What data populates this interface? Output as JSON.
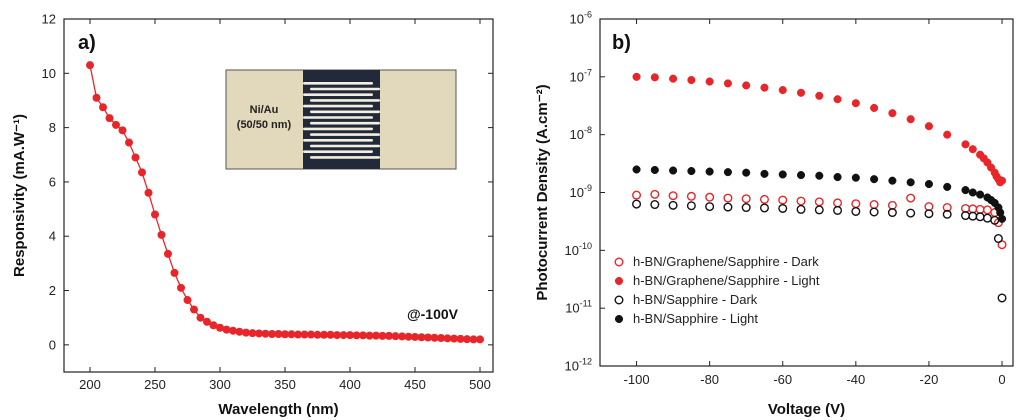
{
  "chart_data": [
    {
      "panel": "a)",
      "type": "line",
      "xlabel": "Wavelength (nm)",
      "ylabel": "Responsivity (mA.W⁻¹)",
      "xlim": [
        180,
        510
      ],
      "ylim": [
        -1,
        12
      ],
      "xticks": [
        200,
        250,
        300,
        350,
        400,
        450,
        500
      ],
      "yticks": [
        0,
        2,
        4,
        6,
        8,
        10,
        12
      ],
      "annotation": "@-100V",
      "inset": {
        "label_line1": "Ni/Au",
        "label_line2": "(50/50 nm)"
      },
      "color": "#e8262a",
      "series": [
        {
          "x": [
            200,
            205,
            210,
            215,
            220,
            225,
            230,
            235,
            240,
            245,
            250,
            255,
            260,
            265,
            270,
            275,
            280,
            285,
            290,
            295,
            300,
            305,
            310,
            315,
            320,
            325,
            330,
            335,
            340,
            345,
            350,
            355,
            360,
            365,
            370,
            375,
            380,
            385,
            390,
            395,
            400,
            405,
            410,
            415,
            420,
            425,
            430,
            435,
            440,
            445,
            450,
            455,
            460,
            465,
            470,
            475,
            480,
            485,
            490,
            495,
            500
          ],
          "y": [
            10.3,
            9.1,
            8.75,
            8.35,
            8.1,
            7.9,
            7.45,
            6.9,
            6.35,
            5.6,
            4.8,
            4.05,
            3.35,
            2.65,
            2.1,
            1.65,
            1.3,
            1.0,
            0.85,
            0.72,
            0.63,
            0.56,
            0.52,
            0.48,
            0.45,
            0.43,
            0.42,
            0.41,
            0.4,
            0.4,
            0.39,
            0.39,
            0.38,
            0.38,
            0.38,
            0.37,
            0.37,
            0.37,
            0.36,
            0.36,
            0.36,
            0.35,
            0.35,
            0.34,
            0.34,
            0.33,
            0.33,
            0.32,
            0.31,
            0.3,
            0.29,
            0.28,
            0.27,
            0.26,
            0.25,
            0.24,
            0.23,
            0.22,
            0.21,
            0.2,
            0.2
          ]
        }
      ]
    },
    {
      "panel": "b)",
      "type": "scatter",
      "xlabel": "Voltage (V)",
      "ylabel": "Photocurrent Density (A.cm⁻²)",
      "yscale": "log",
      "xlim": [
        -110,
        3
      ],
      "ylim": [
        1e-12,
        1e-06
      ],
      "xticks": [
        -100,
        -80,
        -60,
        -40,
        -20,
        0
      ],
      "yticks": [
        1e-12,
        1e-11,
        1e-10,
        1e-09,
        1e-08,
        1e-07,
        1e-06
      ],
      "ytick_labels": [
        {
          "base": "10",
          "exp": "-12"
        },
        {
          "base": "10",
          "exp": "-11"
        },
        {
          "base": "10",
          "exp": "-10"
        },
        {
          "base": "10",
          "exp": "-9"
        },
        {
          "base": "10",
          "exp": "-8"
        },
        {
          "base": "10",
          "exp": "-7"
        },
        {
          "base": "10",
          "exp": "-6"
        }
      ],
      "legend_position": "bottom-left",
      "series": [
        {
          "name": "h-BN/Graphene/Sapphire - Dark",
          "color": "#e8262a",
          "marker": "open-circle",
          "x": [
            -100,
            -95,
            -90,
            -85,
            -80,
            -75,
            -70,
            -65,
            -60,
            -55,
            -50,
            -45,
            -40,
            -35,
            -30,
            -25,
            -20,
            -15,
            -10,
            -8,
            -6,
            -4,
            -2,
            -1,
            0
          ],
          "y": [
            9e-10,
            9.3e-10,
            8.8e-10,
            8.6e-10,
            8.3e-10,
            8e-10,
            7.8e-10,
            7.6e-10,
            7.4e-10,
            7.1e-10,
            6.9e-10,
            6.6e-10,
            6.4e-10,
            6.2e-10,
            6e-10,
            8e-10,
            5.7e-10,
            5.5e-10,
            5.3e-10,
            5.2e-10,
            5.1e-10,
            5e-10,
            4.5e-10,
            3e-10,
            1.25e-10
          ]
        },
        {
          "name": "h-BN/Graphene/Sapphire - Light",
          "color": "#e8262a",
          "marker": "filled-circle",
          "x": [
            -100,
            -95,
            -90,
            -85,
            -80,
            -75,
            -70,
            -65,
            -60,
            -55,
            -50,
            -45,
            -40,
            -35,
            -30,
            -25,
            -20,
            -15,
            -10,
            -8,
            -6,
            -5,
            -4,
            -3,
            -2,
            -1.5,
            -1,
            -0.5,
            0
          ],
          "y": [
            1e-07,
            9.8e-08,
            9.3e-08,
            8.8e-08,
            8.3e-08,
            7.7e-08,
            7.1e-08,
            6.5e-08,
            5.9e-08,
            5.3e-08,
            4.7e-08,
            4.1e-08,
            3.5e-08,
            2.9e-08,
            2.35e-08,
            1.85e-08,
            1.4e-08,
            1e-08,
            6.8e-09,
            5.6e-09,
            4.5e-09,
            3.9e-09,
            3.3e-09,
            2.7e-09,
            2.2e-09,
            1.9e-09,
            1.7e-09,
            1.5e-09,
            1.6e-09
          ]
        },
        {
          "name": "h-BN/Sapphire - Dark",
          "color": "#111111",
          "marker": "open-circle",
          "x": [
            -100,
            -95,
            -90,
            -85,
            -80,
            -75,
            -70,
            -65,
            -60,
            -55,
            -50,
            -45,
            -40,
            -35,
            -30,
            -25,
            -20,
            -15,
            -10,
            -8,
            -6,
            -4,
            -2,
            -1,
            0
          ],
          "y": [
            6.3e-10,
            6.2e-10,
            6e-10,
            5.9e-10,
            5.7e-10,
            5.6e-10,
            5.5e-10,
            5.4e-10,
            5.3e-10,
            5.1e-10,
            5e-10,
            4.9e-10,
            4.7e-10,
            4.6e-10,
            4.5e-10,
            4.4e-10,
            4.3e-10,
            4.2e-10,
            4e-10,
            3.9e-10,
            3.8e-10,
            3.6e-10,
            3.3e-10,
            1.6e-10,
            1.5e-11
          ]
        },
        {
          "name": "h-BN/Sapphire - Light",
          "color": "#111111",
          "marker": "filled-circle",
          "x": [
            -100,
            -95,
            -90,
            -85,
            -80,
            -75,
            -70,
            -65,
            -60,
            -55,
            -50,
            -45,
            -40,
            -35,
            -30,
            -25,
            -20,
            -15,
            -10,
            -8,
            -6,
            -4,
            -3,
            -2,
            -1,
            -0.5,
            0
          ],
          "y": [
            2.5e-09,
            2.45e-09,
            2.4e-09,
            2.35e-09,
            2.3e-09,
            2.25e-09,
            2.2e-09,
            2.1e-09,
            2.05e-09,
            2e-09,
            1.95e-09,
            1.85e-09,
            1.8e-09,
            1.7e-09,
            1.6e-09,
            1.5e-09,
            1.4e-09,
            1.25e-09,
            1.1e-09,
            1e-09,
            9.2e-10,
            8.2e-10,
            7.4e-10,
            6.6e-10,
            5.5e-10,
            4.5e-10,
            3.5e-10
          ]
        }
      ]
    }
  ]
}
